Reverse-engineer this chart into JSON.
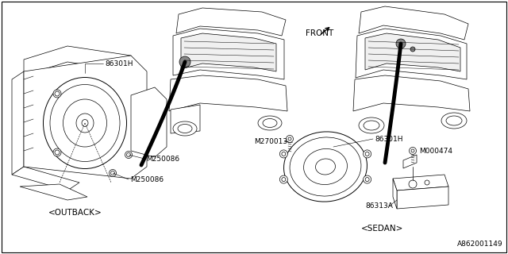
{
  "background_color": "#ffffff",
  "diagram_id": "A862001149",
  "labels": {
    "outback": "<OUTBACK>",
    "sedan": "<SEDAN>",
    "front_arrow": "FRONT",
    "part_86301H_1": "86301H",
    "part_86301H_2": "86301H",
    "part_M250086_1": "M250086",
    "part_M250086_2": "M250086",
    "part_M270013": "M270013",
    "part_M000474": "M000474",
    "part_86313A": "86313A"
  },
  "font_size_label": 6.5,
  "font_size_subhead": 7.5,
  "font_size_diagram_id": 6.5
}
